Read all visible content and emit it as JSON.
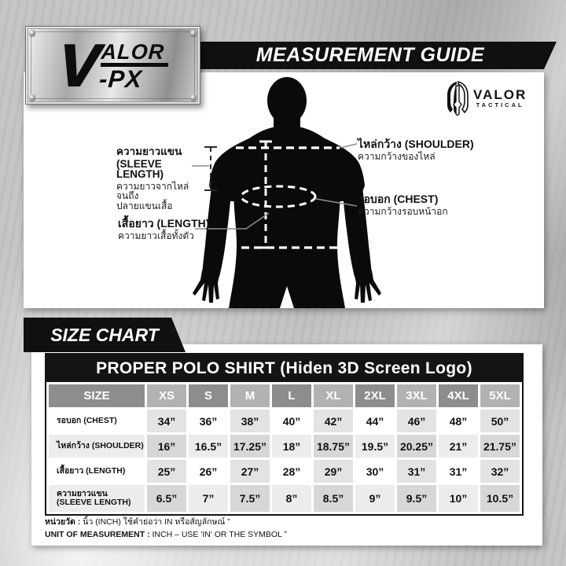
{
  "header": {
    "banner_title": "MEASUREMENT GUIDE",
    "brand": {
      "v": "V",
      "alor": "ALOR",
      "px": "-PX"
    }
  },
  "watermark": {
    "name": "VALOR",
    "sub": "TACTICAL"
  },
  "diagram_labels": {
    "sleeve": {
      "title_th": "ความยาวแขน",
      "title_en": "(SLEEVE LENGTH)",
      "desc1": "ความยาวจากไหล่จนถึง",
      "desc2": "ปลายแขนเสื้อ"
    },
    "length": {
      "title": "เสื้อยาว (LENGTH)",
      "desc": "ความยาวเสื้อทั้งตัว"
    },
    "shoulder": {
      "title": "ไหล่กว้าง (SHOULDER)",
      "desc": "ความกว้างของไหล่"
    },
    "chest": {
      "title": "รอบอก (CHEST)",
      "desc": "ความกว้างรอบหน้าอก"
    }
  },
  "size_chart": {
    "section_title": "SIZE CHART",
    "table_title": "PROPER POLO SHIRT (Hiden 3D Screen Logo)",
    "columns": [
      "SIZE",
      "XS",
      "S",
      "M",
      "L",
      "XL",
      "2XL",
      "3XL",
      "4XL",
      "5XL"
    ],
    "rows": [
      {
        "label": "รอบอก (CHEST)",
        "values": [
          "34”",
          "36”",
          "38”",
          "40”",
          "42”",
          "44”",
          "46”",
          "48”",
          "50”"
        ]
      },
      {
        "label": "ไหล่กว้าง (SHOULDER)",
        "values": [
          "16”",
          "16.5”",
          "17.25”",
          "18”",
          "18.75”",
          "19.5”",
          "20.25”",
          "21”",
          "21.75”"
        ]
      },
      {
        "label": "เสื้อยาว (LENGTH)",
        "values": [
          "25”",
          "26”",
          "27”",
          "28”",
          "29”",
          "30”",
          "31”",
          "31”",
          "32”"
        ]
      },
      {
        "label": "ความยาวแขน (SLEEVE LENGTH)",
        "values": [
          "6.5”",
          "7”",
          "7.5”",
          "8”",
          "8.5”",
          "9”",
          "9.5”",
          "10”",
          "10.5”"
        ]
      }
    ],
    "notes": {
      "th_prefix": "หน่วยวัด :",
      "th_text": " นิ้ว (INCH) ใช้คำย่อว่า IN หรือสัญลักษณ์ ”",
      "en_prefix": "UNIT OF MEASUREMENT :",
      "en_text": " INCH – USE 'IN' OR THE SYMBOL ”"
    }
  },
  "colors": {
    "banner_black": "#101010",
    "header_dark": "#8d8d8d",
    "header_light": "#b2b2b2",
    "row_even_base": "#ffffff",
    "row_even_alt": "#e3e3e3",
    "row_odd_base": "#ececec",
    "row_odd_alt": "#d7d7d7"
  }
}
